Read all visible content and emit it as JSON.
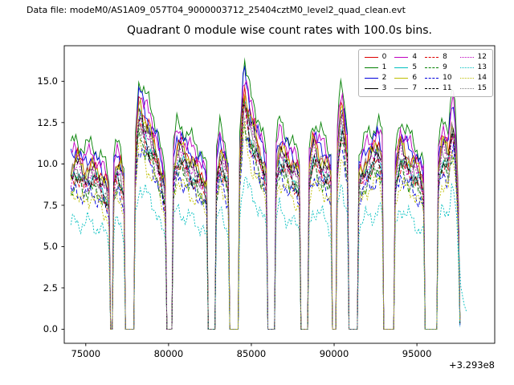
{
  "header": {
    "data_file_text": "Data file: modeM0/AS1A09_057T04_9000003712_25404cztM0_level2_quad_clean.evt"
  },
  "chart_data": {
    "type": "line",
    "title": "Quadrant 0 module wise count rates with 100.0s bins.",
    "xlabel": "",
    "ylabel": "",
    "bin_size_seconds": 100,
    "x_axis": {
      "lim": [
        73700,
        99700
      ],
      "ticks": [
        75000,
        80000,
        85000,
        90000,
        95000
      ],
      "tick_labels": [
        "75000",
        "80000",
        "85000",
        "90000",
        "95000"
      ],
      "offset_label": "+3.293e8"
    },
    "y_axis": {
      "lim": [
        -0.85,
        17.15
      ],
      "ticks": [
        0.0,
        2.5,
        5.0,
        7.5,
        10.0,
        12.5,
        15.0
      ],
      "tick_labels": [
        "0.0",
        "2.5",
        "5.0",
        "7.5",
        "10.0",
        "12.5",
        "15.0"
      ]
    },
    "legend": {
      "location": "upper right",
      "ncol": 4,
      "order": "column-major"
    },
    "series": [
      {
        "label": "0",
        "color": "#dd0000",
        "style": "solid",
        "scale": 1.06
      },
      {
        "label": "1",
        "color": "#007f00",
        "style": "solid",
        "scale": 1.18
      },
      {
        "label": "2",
        "color": "#0000dd",
        "style": "solid",
        "scale": 1.1
      },
      {
        "label": "3",
        "color": "#000000",
        "style": "solid",
        "scale": 1.02
      },
      {
        "label": "4",
        "color": "#bf00bf",
        "style": "solid",
        "scale": 1.12
      },
      {
        "label": "5",
        "color": "#00bfbf",
        "style": "solid",
        "scale": 0.97
      },
      {
        "label": "6",
        "color": "#bfbf00",
        "style": "solid",
        "scale": 1.04
      },
      {
        "label": "7",
        "color": "#7f7f7f",
        "style": "solid",
        "scale": 0.99
      },
      {
        "label": "8",
        "color": "#dd0000",
        "style": "dashed",
        "scale": 0.94
      },
      {
        "label": "9",
        "color": "#007f00",
        "style": "dashed",
        "scale": 0.9
      },
      {
        "label": "10",
        "color": "#0000dd",
        "style": "dashed",
        "scale": 0.87
      },
      {
        "label": "11",
        "color": "#000000",
        "style": "dashed",
        "scale": 0.96
      },
      {
        "label": "12",
        "color": "#bf00bf",
        "style": "dotted",
        "scale": 0.99
      },
      {
        "label": "13",
        "color": "#00bfbf",
        "style": "dotted",
        "scale": 0.68
      },
      {
        "label": "14",
        "color": "#bfbf00",
        "style": "dotted",
        "scale": 0.84
      },
      {
        "label": "15",
        "color": "#7f7f7f",
        "style": "dotted",
        "scale": 0.92
      }
    ],
    "base_profile": {
      "comment_units": "x = mission time seconds (offset +3.293e8), v = median module count rate (counts/s); gaps between segments are zero-rate intervals",
      "sample_step": 100,
      "segments": [
        [
          [
            74100,
            9.4
          ],
          [
            74400,
            9.8
          ],
          [
            74900,
            9.2
          ],
          [
            75400,
            9.5
          ],
          [
            75900,
            8.9
          ],
          [
            76250,
            8.4
          ],
          [
            76400,
            7.6
          ]
        ],
        [
          [
            76650,
            8.6
          ],
          [
            76850,
            9.7
          ],
          [
            77100,
            9.3
          ],
          [
            77300,
            8.4
          ]
        ],
        [
          [
            77950,
            9.2
          ],
          [
            78150,
            12.6
          ],
          [
            78250,
            13.1
          ],
          [
            78500,
            12.2
          ],
          [
            78900,
            11.4
          ],
          [
            79300,
            10.3
          ],
          [
            79650,
            8.8
          ],
          [
            79880,
            7.6
          ]
        ],
        [
          [
            80250,
            9.2
          ],
          [
            80500,
            10.5
          ],
          [
            80750,
            10.6
          ],
          [
            81100,
            10.0
          ],
          [
            81600,
            9.5
          ],
          [
            82100,
            8.9
          ],
          [
            82340,
            8.2
          ]
        ],
        [
          [
            82900,
            9.2
          ],
          [
            83100,
            10.4
          ],
          [
            83350,
            9.8
          ],
          [
            83630,
            8.8
          ]
        ],
        [
          [
            84280,
            9.6
          ],
          [
            84480,
            13.3
          ],
          [
            84600,
            13.8
          ],
          [
            84900,
            12.3
          ],
          [
            85300,
            11.0
          ],
          [
            85700,
            9.9
          ],
          [
            85940,
            9.0
          ]
        ],
        [
          [
            86450,
            9.3
          ],
          [
            86700,
            10.6
          ],
          [
            86950,
            10.3
          ],
          [
            87350,
            9.7
          ],
          [
            87700,
            9.3
          ],
          [
            87980,
            8.6
          ]
        ],
        [
          [
            88500,
            9.4
          ],
          [
            88750,
            10.8
          ],
          [
            89050,
            10.2
          ],
          [
            89450,
            9.7
          ],
          [
            89880,
            9.0
          ]
        ],
        [
          [
            90150,
            9.7
          ],
          [
            90350,
            12.2
          ],
          [
            90480,
            12.7
          ],
          [
            90700,
            11.0
          ],
          [
            90880,
            9.9
          ]
        ],
        [
          [
            91500,
            9.0
          ],
          [
            91900,
            9.8
          ],
          [
            92300,
            10.2
          ],
          [
            92650,
            10.8
          ],
          [
            92950,
            9.8
          ]
        ],
        [
          [
            93700,
            9.2
          ],
          [
            94000,
            10.7
          ],
          [
            94350,
            10.2
          ],
          [
            94800,
            9.6
          ],
          [
            95200,
            9.1
          ],
          [
            95430,
            8.4
          ]
        ],
        [
          [
            96300,
            9.5
          ],
          [
            96550,
            10.8
          ],
          [
            96900,
            10.3
          ],
          [
            97150,
            12.5
          ],
          [
            97280,
            11.5
          ],
          [
            97420,
            9.3
          ],
          [
            97500,
            7.0
          ],
          [
            97600,
            0.5
          ]
        ]
      ]
    },
    "series13_tail": [
      [
        97500,
        5.2
      ],
      [
        97650,
        2.6
      ],
      [
        97850,
        1.5
      ],
      [
        97980,
        1.1
      ]
    ]
  }
}
